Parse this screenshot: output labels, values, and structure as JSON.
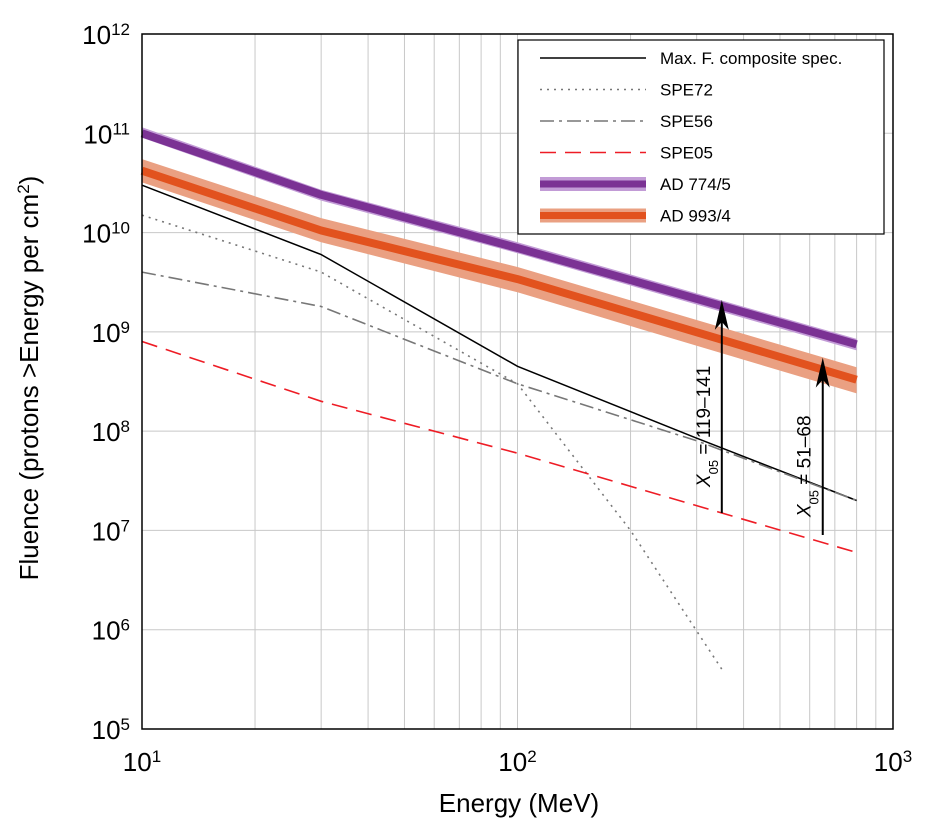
{
  "chart_data": {
    "type": "line",
    "xscale": "log",
    "yscale": "log",
    "xlim": [
      10,
      1000
    ],
    "ylim": [
      100000,
      1000000000000
    ],
    "xlabel": "Energy (MeV)",
    "ylabel": {
      "prefix": "Fluence (protons >Energy per cm",
      "sup": "2",
      "suffix": ")"
    },
    "grid": true,
    "x_ticks": [
      {
        "base": "10",
        "exp": "1",
        "value": 10
      },
      {
        "base": "10",
        "exp": "2",
        "value": 100
      },
      {
        "base": "10",
        "exp": "3",
        "value": 1000
      }
    ],
    "y_ticks": [
      {
        "base": "10",
        "exp": "5",
        "value": 100000
      },
      {
        "base": "10",
        "exp": "6",
        "value": 1000000
      },
      {
        "base": "10",
        "exp": "7",
        "value": 10000000
      },
      {
        "base": "10",
        "exp": "8",
        "value": 100000000
      },
      {
        "base": "10",
        "exp": "9",
        "value": 1000000000
      },
      {
        "base": "10",
        "exp": "10",
        "value": 10000000000
      },
      {
        "base": "10",
        "exp": "11",
        "value": 100000000000
      },
      {
        "base": "10",
        "exp": "12",
        "value": 1000000000000
      }
    ],
    "legend_position": "top-right",
    "series": [
      {
        "id": "maxf",
        "name": "Max. F. composite spec.",
        "color": "#000000",
        "style": "solid",
        "x": [
          10,
          30,
          100,
          300,
          800
        ],
        "y": [
          30000000000,
          6000000000,
          450000000,
          85000000,
          20000000
        ]
      },
      {
        "id": "spe72",
        "name": "SPE72",
        "color": "#777777",
        "style": "dotted",
        "x": [
          10,
          30,
          100,
          200,
          350
        ],
        "y": [
          15000000000,
          4000000000,
          300000000,
          10000000,
          400000
        ]
      },
      {
        "id": "spe56",
        "name": "SPE56",
        "color": "#777777",
        "style": "dashdot",
        "x": [
          10,
          30,
          100,
          300,
          800
        ],
        "y": [
          4000000000,
          1800000000,
          300000000,
          80000000,
          20000000
        ]
      },
      {
        "id": "spe05",
        "name": "SPE05",
        "color": "#ee1c25",
        "style": "dashed",
        "x": [
          10,
          30,
          100,
          800
        ],
        "y": [
          800000000,
          200000000,
          60000000,
          6000000
        ]
      },
      {
        "id": "ad774",
        "name": "AD 774/5",
        "color": "#7b3294",
        "light_color": "#c29bd6",
        "style": "band",
        "x": [
          10,
          30,
          100,
          800
        ],
        "lower": [
          90000000000,
          21000000000,
          6200000000,
          650000000
        ],
        "mid": [
          100000000000,
          24000000000,
          7000000000,
          750000000
        ],
        "upper": [
          115000000000,
          27000000000,
          8000000000,
          850000000
        ]
      },
      {
        "id": "ad993",
        "name": "AD 993/4",
        "color": "#e2521e",
        "light_color": "#eaa082",
        "style": "band",
        "x": [
          10,
          30,
          100,
          800
        ],
        "lower": [
          32000000000,
          8000000000,
          2500000000,
          240000000
        ],
        "mid": [
          42000000000,
          10500000000,
          3400000000,
          330000000
        ],
        "upper": [
          55000000000,
          14000000000,
          4500000000,
          440000000
        ]
      }
    ],
    "annotations": [
      {
        "id": "arrow1",
        "x": 350,
        "y_from": 15000000,
        "y_to": 2100000000,
        "label": {
          "pre": "X",
          "sub": "05",
          "post": " = 119–141"
        }
      },
      {
        "id": "arrow2",
        "x": 650,
        "y_from": 9000000,
        "y_to": 550000000,
        "label": {
          "pre": "X",
          "sub": "05",
          "post": " = 51–68"
        }
      }
    ]
  }
}
